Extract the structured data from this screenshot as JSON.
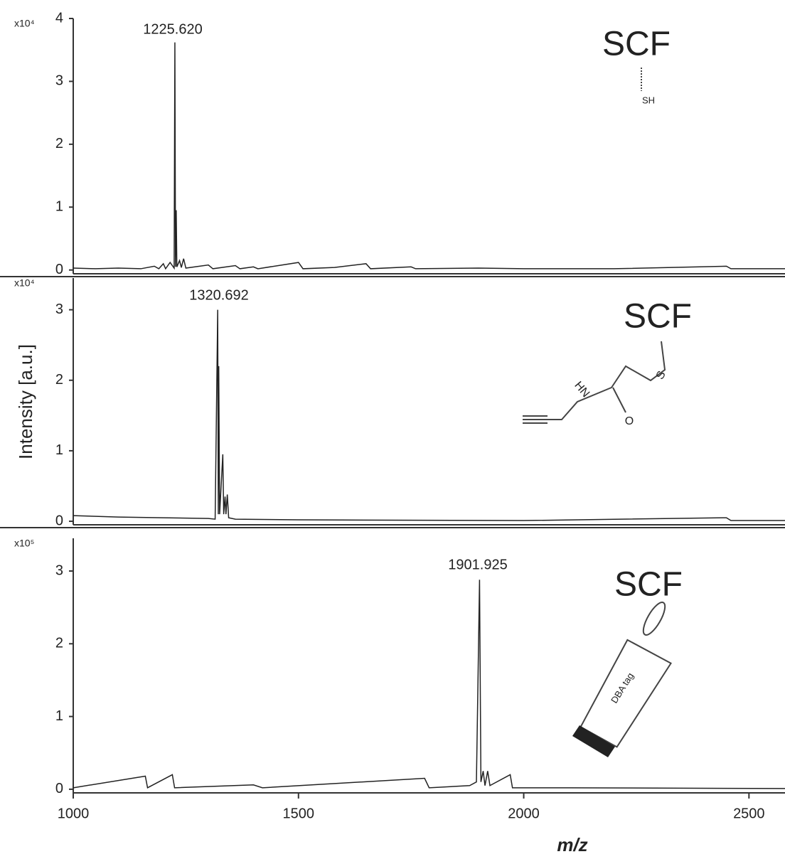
{
  "chart_data": [
    {
      "type": "line",
      "y_multiplier": "x10⁴",
      "xlim": [
        1000,
        2580
      ],
      "ylim": [
        -0.06,
        4
      ],
      "yticks": [
        0,
        1,
        2,
        3,
        4
      ],
      "series": [
        {
          "name": null,
          "color": "#222222",
          "x": [
            1000,
            1050,
            1100,
            1150,
            1180,
            1190,
            1200,
            1205,
            1215,
            1224,
            1225.62,
            1227,
            1228.6,
            1230,
            1236,
            1240,
            1245,
            1250,
            1300,
            1310,
            1360,
            1370,
            1400,
            1410,
            1500,
            1510,
            1580,
            1650,
            1660,
            1750,
            1760,
            1900,
            2000,
            2200,
            2450,
            2460,
            2580
          ],
          "values": [
            0.03,
            0.02,
            0.03,
            0.02,
            0.06,
            0.02,
            0.1,
            0.02,
            0.12,
            0.03,
            3.62,
            0.05,
            0.95,
            0.05,
            0.15,
            0.04,
            0.18,
            0.03,
            0.08,
            0.02,
            0.07,
            0.02,
            0.05,
            0.02,
            0.12,
            0.02,
            0.04,
            0.1,
            0.02,
            0.05,
            0.02,
            0.03,
            0.02,
            0.02,
            0.06,
            0.02,
            0.02
          ]
        }
      ],
      "annotations": [
        "1225.620",
        "SCF",
        "SH"
      ]
    },
    {
      "type": "line",
      "y_multiplier": "x10⁴",
      "ylabel": "Intensity [a.u.]",
      "xlim": [
        1000,
        2580
      ],
      "ylim": [
        -0.05,
        3.45
      ],
      "yticks": [
        0,
        1,
        2,
        3
      ],
      "series": [
        {
          "name": null,
          "color": "#222222",
          "x": [
            1000,
            1100,
            1200,
            1300,
            1315,
            1320.692,
            1322,
            1323,
            1325,
            1332,
            1334,
            1337,
            1339,
            1342,
            1345,
            1360,
            1500,
            2000,
            2450,
            2460,
            2580
          ],
          "values": [
            0.08,
            0.06,
            0.05,
            0.04,
            0.03,
            3.0,
            0.1,
            2.2,
            0.1,
            0.95,
            0.1,
            0.35,
            0.1,
            0.38,
            0.05,
            0.03,
            0.02,
            0.01,
            0.05,
            0.01,
            0.01
          ]
        }
      ],
      "annotations": [
        "1320.692",
        "SCF",
        "S",
        "HN",
        "O"
      ]
    },
    {
      "type": "line",
      "y_multiplier": "x10⁵",
      "xlabel": "m/z",
      "xlim": [
        1000,
        2580
      ],
      "ylim": [
        -0.05,
        3.45
      ],
      "yticks": [
        0,
        1,
        2,
        3
      ],
      "xticks": [
        1000,
        1500,
        2000,
        2500
      ],
      "series": [
        {
          "name": null,
          "color": "#222222",
          "x": [
            1000,
            1160,
            1165,
            1220,
            1225,
            1400,
            1420,
            1780,
            1790,
            1880,
            1895,
            1901.925,
            1905,
            1910,
            1914,
            1920,
            1925,
            1970,
            1975,
            2100,
            2580
          ],
          "values": [
            0.02,
            0.18,
            0.02,
            0.2,
            0.02,
            0.06,
            0.02,
            0.15,
            0.02,
            0.05,
            0.1,
            2.88,
            0.1,
            0.25,
            0.05,
            0.25,
            0.05,
            0.2,
            0.02,
            0.02,
            0.01
          ]
        }
      ],
      "annotations": [
        "1901.925",
        "SCF",
        "DBA tag"
      ]
    }
  ]
}
